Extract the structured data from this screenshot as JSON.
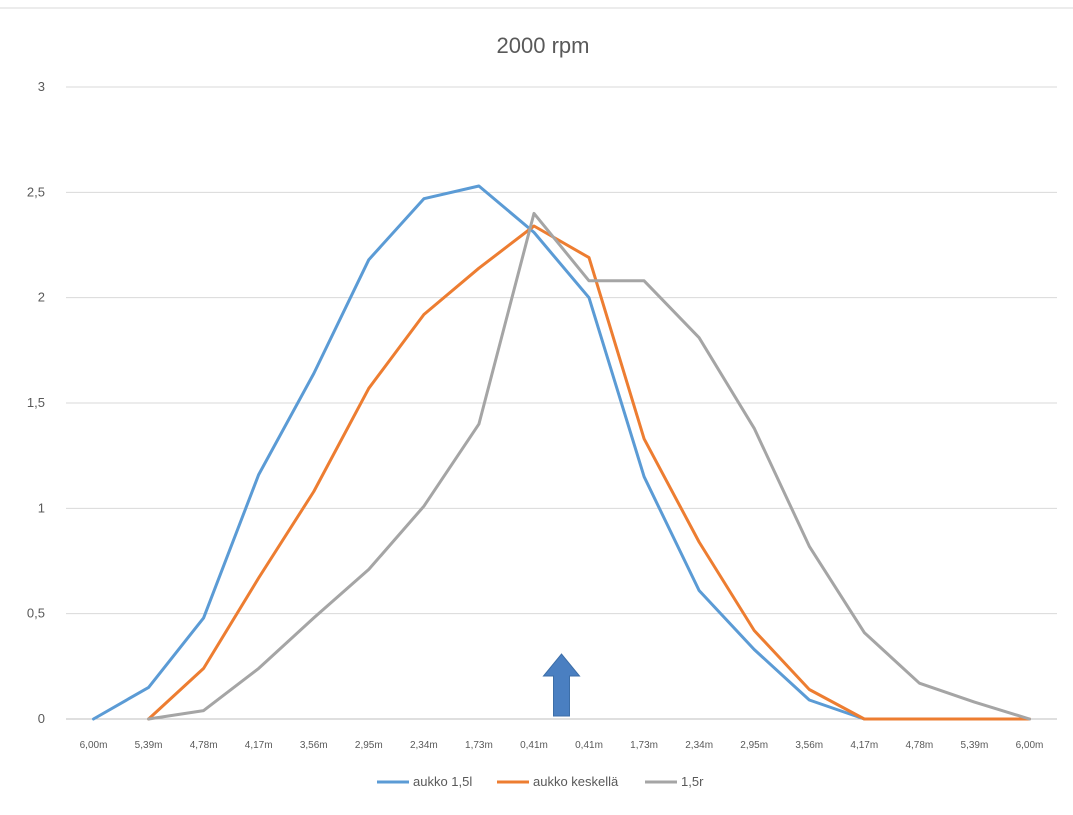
{
  "chart_data": {
    "type": "line",
    "title": "2000 rpm",
    "xlabel": "",
    "ylabel": "",
    "ylim": [
      0,
      3
    ],
    "yticks": [
      "0",
      "0,5",
      "1",
      "1,5",
      "2",
      "2,5",
      "3"
    ],
    "categories": [
      "6,00m",
      "5,39m",
      "4,78m",
      "4,17m",
      "3,56m",
      "2,95m",
      "2,34m",
      "1,73m",
      "0,41m",
      "0,41m",
      "1,73m",
      "2,34m",
      "2,95m",
      "3,56m",
      "4,17m",
      "4,78m",
      "5,39m",
      "6,00m"
    ],
    "series": [
      {
        "name": "aukko 1,5l",
        "color": "#5b9bd5",
        "values": [
          0,
          0.15,
          0.48,
          1.16,
          1.64,
          2.18,
          2.47,
          2.53,
          2.31,
          2.0,
          1.15,
          0.61,
          0.33,
          0.09,
          0,
          null,
          null,
          null
        ]
      },
      {
        "name": "aukko keskellä",
        "color": "#ed7d31",
        "values": [
          null,
          0,
          0.24,
          0.67,
          1.08,
          1.57,
          1.92,
          2.14,
          2.34,
          2.19,
          1.33,
          0.84,
          0.42,
          0.14,
          0,
          0,
          0,
          0
        ]
      },
      {
        "name": "1,5r",
        "color": "#a5a5a5",
        "values": [
          null,
          0,
          0.04,
          0.24,
          0.48,
          0.71,
          1.01,
          1.4,
          2.4,
          2.08,
          2.08,
          1.81,
          1.38,
          0.82,
          0.41,
          0.17,
          0.08,
          0
        ]
      }
    ],
    "grid": true,
    "legend": "bottom",
    "annotations": [
      {
        "type": "arrow-up",
        "color": "#4a7fc1",
        "x_between": [
          "0,41m",
          "0,41m"
        ]
      }
    ]
  }
}
